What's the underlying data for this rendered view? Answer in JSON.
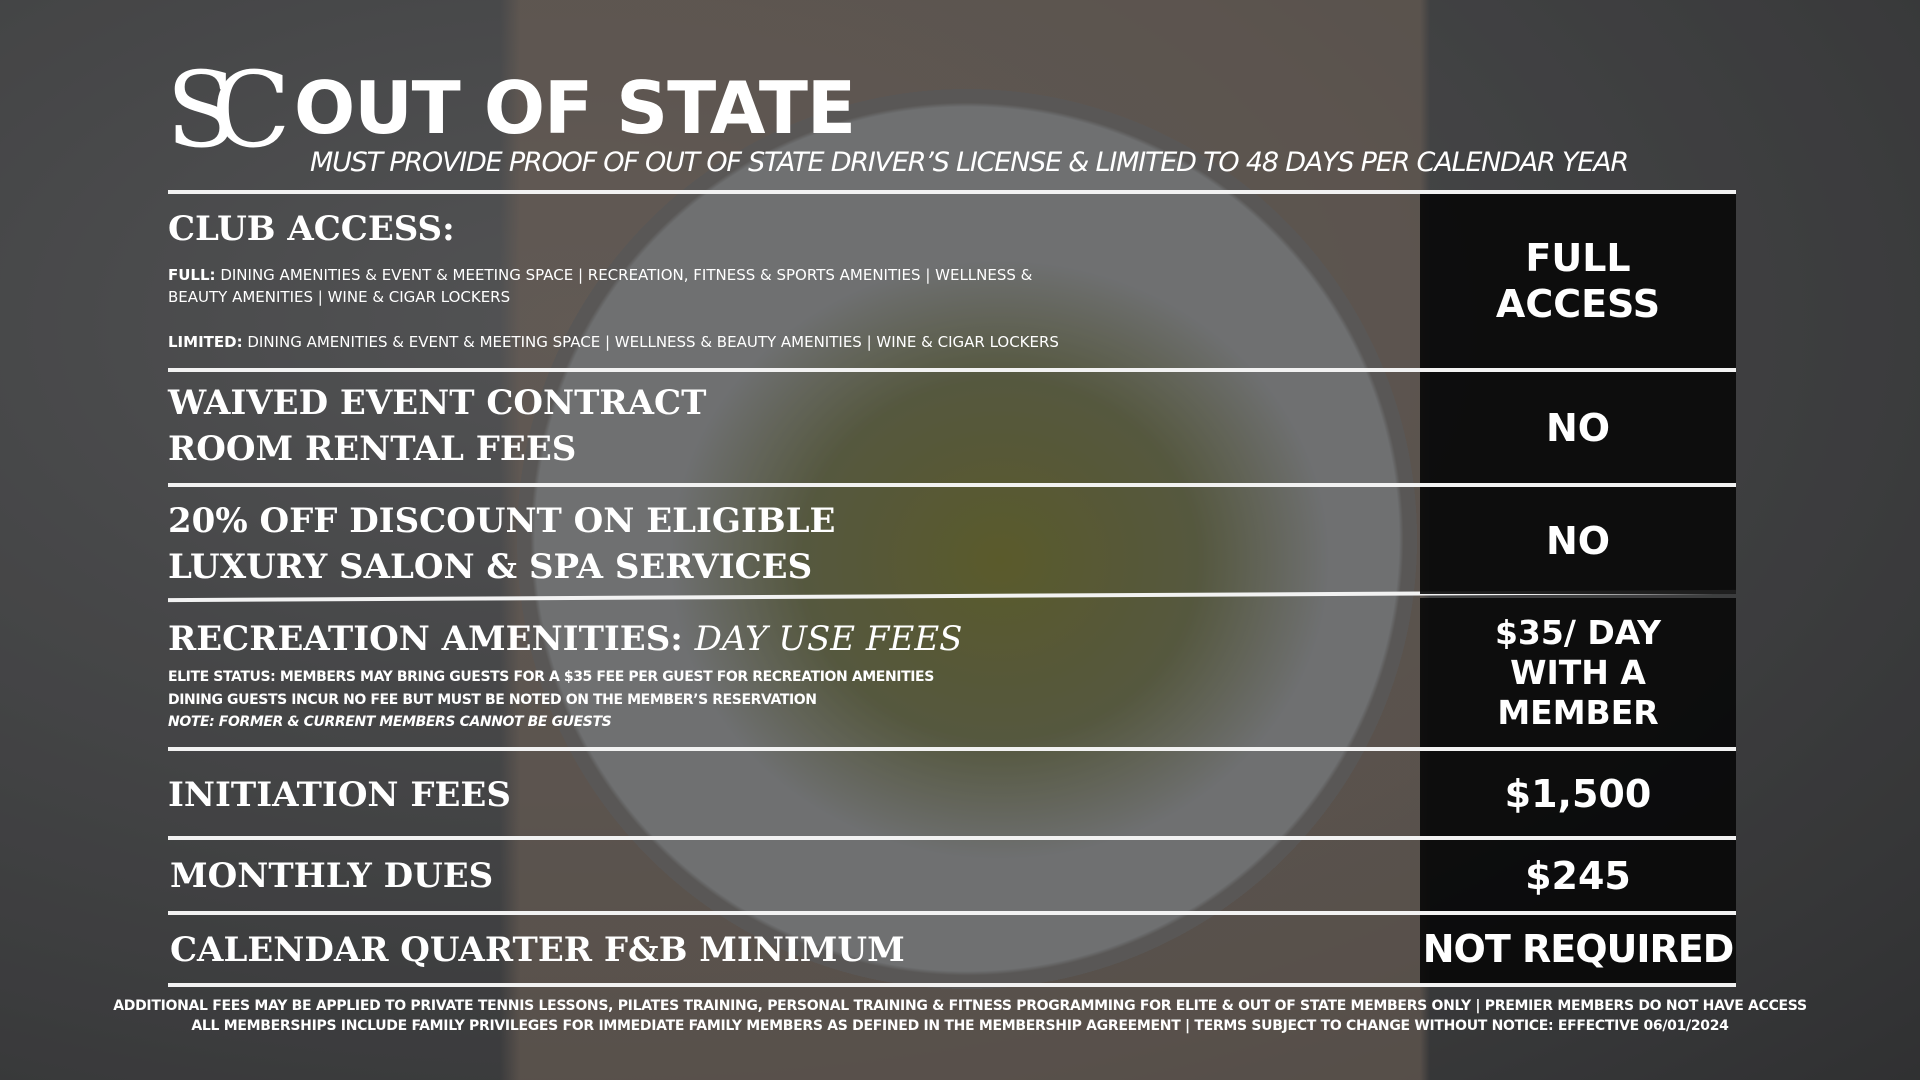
{
  "logo": "SC",
  "title": "OUT OF STATE",
  "subtitle": "MUST PROVIDE PROOF OF OUT OF STATE DRIVER’S LICENSE & LIMITED TO 48 DAYS PER CALENDAR YEAR",
  "rows": [
    {
      "label": "CLUB ACCESS:",
      "details": [
        {
          "lead": "FULL:",
          "text": "DINING AMENITIES & EVENT & MEETING SPACE | RECREATION, FITNESS & SPORTS AMENITIES | WELLNESS & BEAUTY AMENITIES | WINE & CIGAR LOCKERS"
        },
        {
          "lead": "LIMITED:",
          "text": "DINING AMENITIES & EVENT & MEETING SPACE | WELLNESS & BEAUTY AMENITIES | WINE & CIGAR LOCKERS"
        }
      ],
      "value": "FULL ACCESS"
    },
    {
      "label": "WAIVED EVENT CONTRACT ROOM RENTAL FEES",
      "value": "NO"
    },
    {
      "label": "20% OFF DISCOUNT ON ELIGIBLE LUXURY SALON & SPA SERVICES",
      "value": "NO"
    },
    {
      "label": "RECREATION AMENITIES:",
      "label_italic": "DAY USE FEES",
      "notes": [
        "ELITE STATUS: MEMBERS MAY BRING GUESTS FOR A $35 FEE PER GUEST FOR RECREATION AMENITIES",
        "DINING GUESTS INCUR NO FEE BUT MUST BE NOTED ON THE MEMBER’S RESERVATION",
        "NOTE: FORMER & CURRENT MEMBERS CANNOT BE GUESTS"
      ],
      "value": "$35/ DAY WITH A MEMBER"
    },
    {
      "label": "INITIATION FEES",
      "value": "$1,500"
    },
    {
      "label": "MONTHLY DUES",
      "value": "$245"
    },
    {
      "label": "CALENDAR QUARTER F&B MINIMUM",
      "value": "NOT REQUIRED"
    }
  ],
  "footer": [
    "ADDITIONAL FEES MAY BE APPLIED TO PRIVATE TENNIS LESSONS, PILATES TRAINING, PERSONAL TRAINING & FITNESS PROGRAMMING FOR ELITE & OUT OF STATE MEMBERS ONLY | PREMIER MEMBERS DO NOT HAVE ACCESS",
    "ALL MEMBERSHIPS INCLUDE FAMILY PRIVILEGES FOR IMMEDIATE FAMILY MEMBERS AS DEFINED IN THE MEMBERSHIP AGREEMENT | TERMS SUBJECT TO CHANGE WITHOUT NOTICE: EFFECTIVE 06/01/2024"
  ]
}
